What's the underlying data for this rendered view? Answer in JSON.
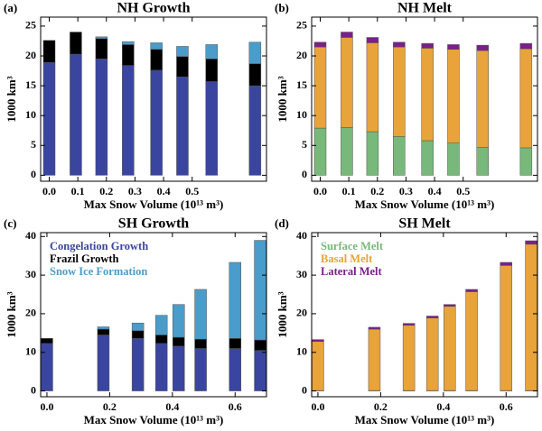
{
  "chart_data": [
    {
      "panel_label": "(a)",
      "title": "NH Growth",
      "type": "bar",
      "stacked": true,
      "legend": false,
      "x_label": "Max Snow Volume (10¹³ m³)",
      "y_label": "1000 km³",
      "x": [
        0,
        0.093,
        0.183,
        0.276,
        0.375,
        0.466,
        0.568,
        0.72
      ],
      "series": [
        {
          "name": "Congelation Growth",
          "color": "#3a45a0",
          "values": [
            18.9,
            20.3,
            19.5,
            18.4,
            17.6,
            16.5,
            15.7,
            15.0
          ]
        },
        {
          "name": "Frazil Growth",
          "color": "#000000",
          "values": [
            3.7,
            3.7,
            3.4,
            3.5,
            3.5,
            3.4,
            3.8,
            3.7
          ]
        },
        {
          "name": "Snow Ice Formation",
          "color": "#4a9ccb",
          "values": [
            0,
            0,
            0.3,
            0.5,
            1.1,
            1.7,
            2.4,
            3.6
          ]
        }
      ],
      "xlim": [
        -0.03,
        0.76
      ],
      "ylim": [
        -1,
        26.5
      ],
      "xticks": [
        {
          "value": 0,
          "label": "0.0"
        },
        {
          "value": 0.1,
          "label": "0.1"
        },
        {
          "value": 0.2,
          "label": "0.2"
        },
        {
          "value": 0.3,
          "label": "0.3"
        },
        {
          "value": 0.4,
          "label": "0.4"
        },
        {
          "value": 0.5,
          "label": "0.5"
        }
      ],
      "yticks": [
        0,
        5,
        10,
        15,
        20,
        25
      ]
    },
    {
      "panel_label": "(b)",
      "title": "NH Melt",
      "type": "bar",
      "stacked": true,
      "legend": false,
      "x_label": "Max Snow Volume (10¹³ m³)",
      "y_label": "1000 km³",
      "x": [
        0,
        0.093,
        0.183,
        0.276,
        0.375,
        0.466,
        0.568,
        0.72
      ],
      "series": [
        {
          "name": "Surface Melt",
          "color": "#78b87a",
          "values": [
            7.9,
            8.0,
            7.3,
            6.5,
            5.8,
            5.4,
            4.7,
            4.6
          ]
        },
        {
          "name": "Basal Melt",
          "color": "#e8a33a",
          "values": [
            13.6,
            15.1,
            14.9,
            15.0,
            15.5,
            15.7,
            16.2,
            16.6
          ]
        },
        {
          "name": "Lateral Melt",
          "color": "#7b1f8a",
          "values": [
            0.8,
            0.9,
            0.9,
            0.8,
            0.8,
            0.8,
            0.9,
            0.9
          ]
        }
      ],
      "xlim": [
        -0.03,
        0.76
      ],
      "ylim": [
        -1,
        26.5
      ],
      "xticks": [
        {
          "value": 0,
          "label": "0.0"
        },
        {
          "value": 0.1,
          "label": "0.1"
        },
        {
          "value": 0.2,
          "label": "0.2"
        },
        {
          "value": 0.3,
          "label": "0.3"
        },
        {
          "value": 0.4,
          "label": "0.4"
        },
        {
          "value": 0.5,
          "label": "0.5"
        }
      ],
      "yticks": [
        0,
        5,
        10,
        15,
        20,
        25
      ]
    },
    {
      "panel_label": "(c)",
      "title": "SH Growth",
      "type": "bar",
      "stacked": true,
      "legend": true,
      "legend_position": "upper left",
      "x_label": "Max Snow Volume (10¹³ m³)",
      "y_label": "1000 km³",
      "x": [
        0,
        0.18,
        0.29,
        0.365,
        0.42,
        0.49,
        0.6,
        0.68
      ],
      "series": [
        {
          "name": "Congelation Growth",
          "color": "#3a45a0",
          "values": [
            12.3,
            14.5,
            13.6,
            12.3,
            11.6,
            11.0,
            11.0,
            10.5
          ]
        },
        {
          "name": "Frazil Growth",
          "color": "#000000",
          "values": [
            1.3,
            1.5,
            2.0,
            2.2,
            2.3,
            2.4,
            2.6,
            2.7
          ]
        },
        {
          "name": "Snow Ice Formation",
          "color": "#4a9ccb",
          "values": [
            0,
            0.6,
            2.0,
            5.1,
            8.5,
            12.9,
            19.7,
            25.8
          ]
        }
      ],
      "xlim": [
        -0.02,
        0.7
      ],
      "ylim": [
        -1.5,
        41
      ],
      "xticks": [
        {
          "value": 0,
          "label": "0.0"
        },
        {
          "value": 0.2,
          "label": "0.2"
        },
        {
          "value": 0.4,
          "label": "0.4"
        },
        {
          "value": 0.6,
          "label": "0.6"
        }
      ],
      "yticks": [
        0,
        10,
        20,
        30,
        40
      ]
    },
    {
      "panel_label": "(d)",
      "title": "SH Melt",
      "type": "bar",
      "stacked": true,
      "legend": true,
      "legend_position": "upper left",
      "x_label": "Max Snow Volume (10¹³ m³)",
      "y_label": "1000 km³",
      "x": [
        0,
        0.18,
        0.29,
        0.365,
        0.42,
        0.49,
        0.6,
        0.68
      ],
      "series": [
        {
          "name": "Surface Melt",
          "color": "#78b87a",
          "values": [
            0.1,
            0.1,
            0.1,
            0.1,
            0.1,
            0.1,
            0.1,
            0.1
          ]
        },
        {
          "name": "Basal Melt",
          "color": "#e8a33a",
          "values": [
            12.7,
            15.9,
            16.9,
            18.8,
            21.8,
            25.6,
            32.4,
            37.9
          ]
        },
        {
          "name": "Lateral Melt",
          "color": "#7b1f8a",
          "values": [
            0.5,
            0.5,
            0.5,
            0.5,
            0.5,
            0.6,
            0.8,
            0.9
          ]
        }
      ],
      "xlim": [
        -0.02,
        0.7
      ],
      "ylim": [
        -1.5,
        41
      ],
      "xticks": [
        {
          "value": 0,
          "label": "0.0"
        },
        {
          "value": 0.2,
          "label": "0.2"
        },
        {
          "value": 0.4,
          "label": "0.4"
        },
        {
          "value": 0.6,
          "label": "0.6"
        }
      ],
      "yticks": [
        0,
        10,
        20,
        30,
        40
      ]
    }
  ]
}
